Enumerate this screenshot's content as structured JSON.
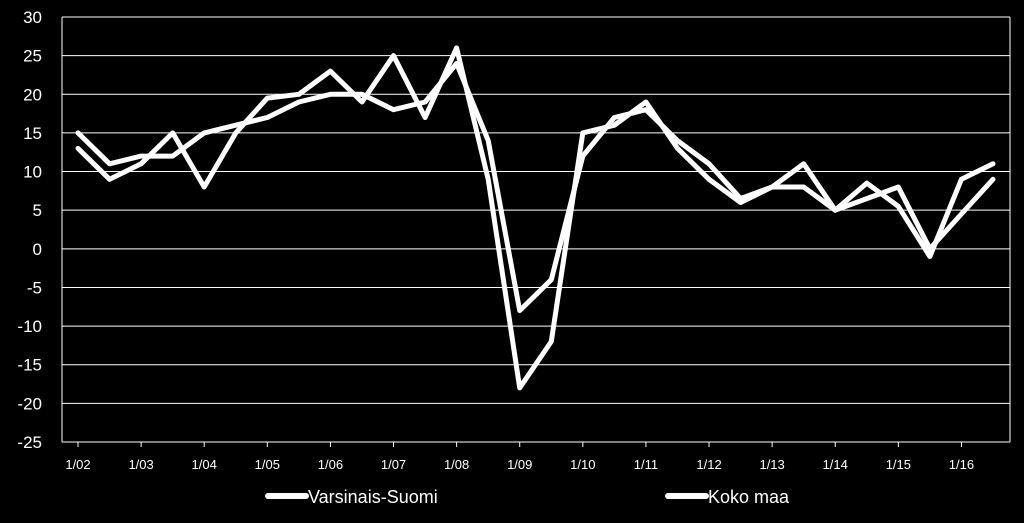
{
  "chart_data": {
    "type": "line",
    "ylim": [
      -25,
      30
    ],
    "yticks": [
      30,
      25,
      20,
      15,
      10,
      5,
      0,
      -5,
      -10,
      -15,
      -20,
      -25
    ],
    "x_tick_labels": [
      "1/02",
      "1/03",
      "1/04",
      "1/05",
      "1/06",
      "1/07",
      "1/08",
      "1/09",
      "1/10",
      "1/11",
      "1/12",
      "1/13",
      "1/14",
      "1/15",
      "1/16"
    ],
    "grid": true,
    "legend_position": "bottom",
    "line_color": "#ffffff",
    "background": "#000000",
    "series": [
      {
        "name": "Varsinais-Suomi",
        "values": [
          13,
          9,
          11,
          15,
          8,
          15,
          19.5,
          20,
          23,
          19,
          25,
          17,
          26,
          9,
          -18,
          -12,
          15,
          16,
          19,
          13,
          9,
          6,
          8,
          11,
          5,
          8.5,
          5.5,
          -1,
          9,
          11
        ]
      },
      {
        "name": "Koko maa",
        "values": [
          15,
          11,
          12,
          12,
          15,
          16,
          17,
          19,
          20,
          20,
          18,
          19,
          24,
          14,
          -8,
          -4,
          12,
          17,
          18,
          14,
          11,
          6.5,
          8,
          8,
          5,
          6.5,
          8,
          0,
          4.5,
          9
        ]
      }
    ]
  }
}
